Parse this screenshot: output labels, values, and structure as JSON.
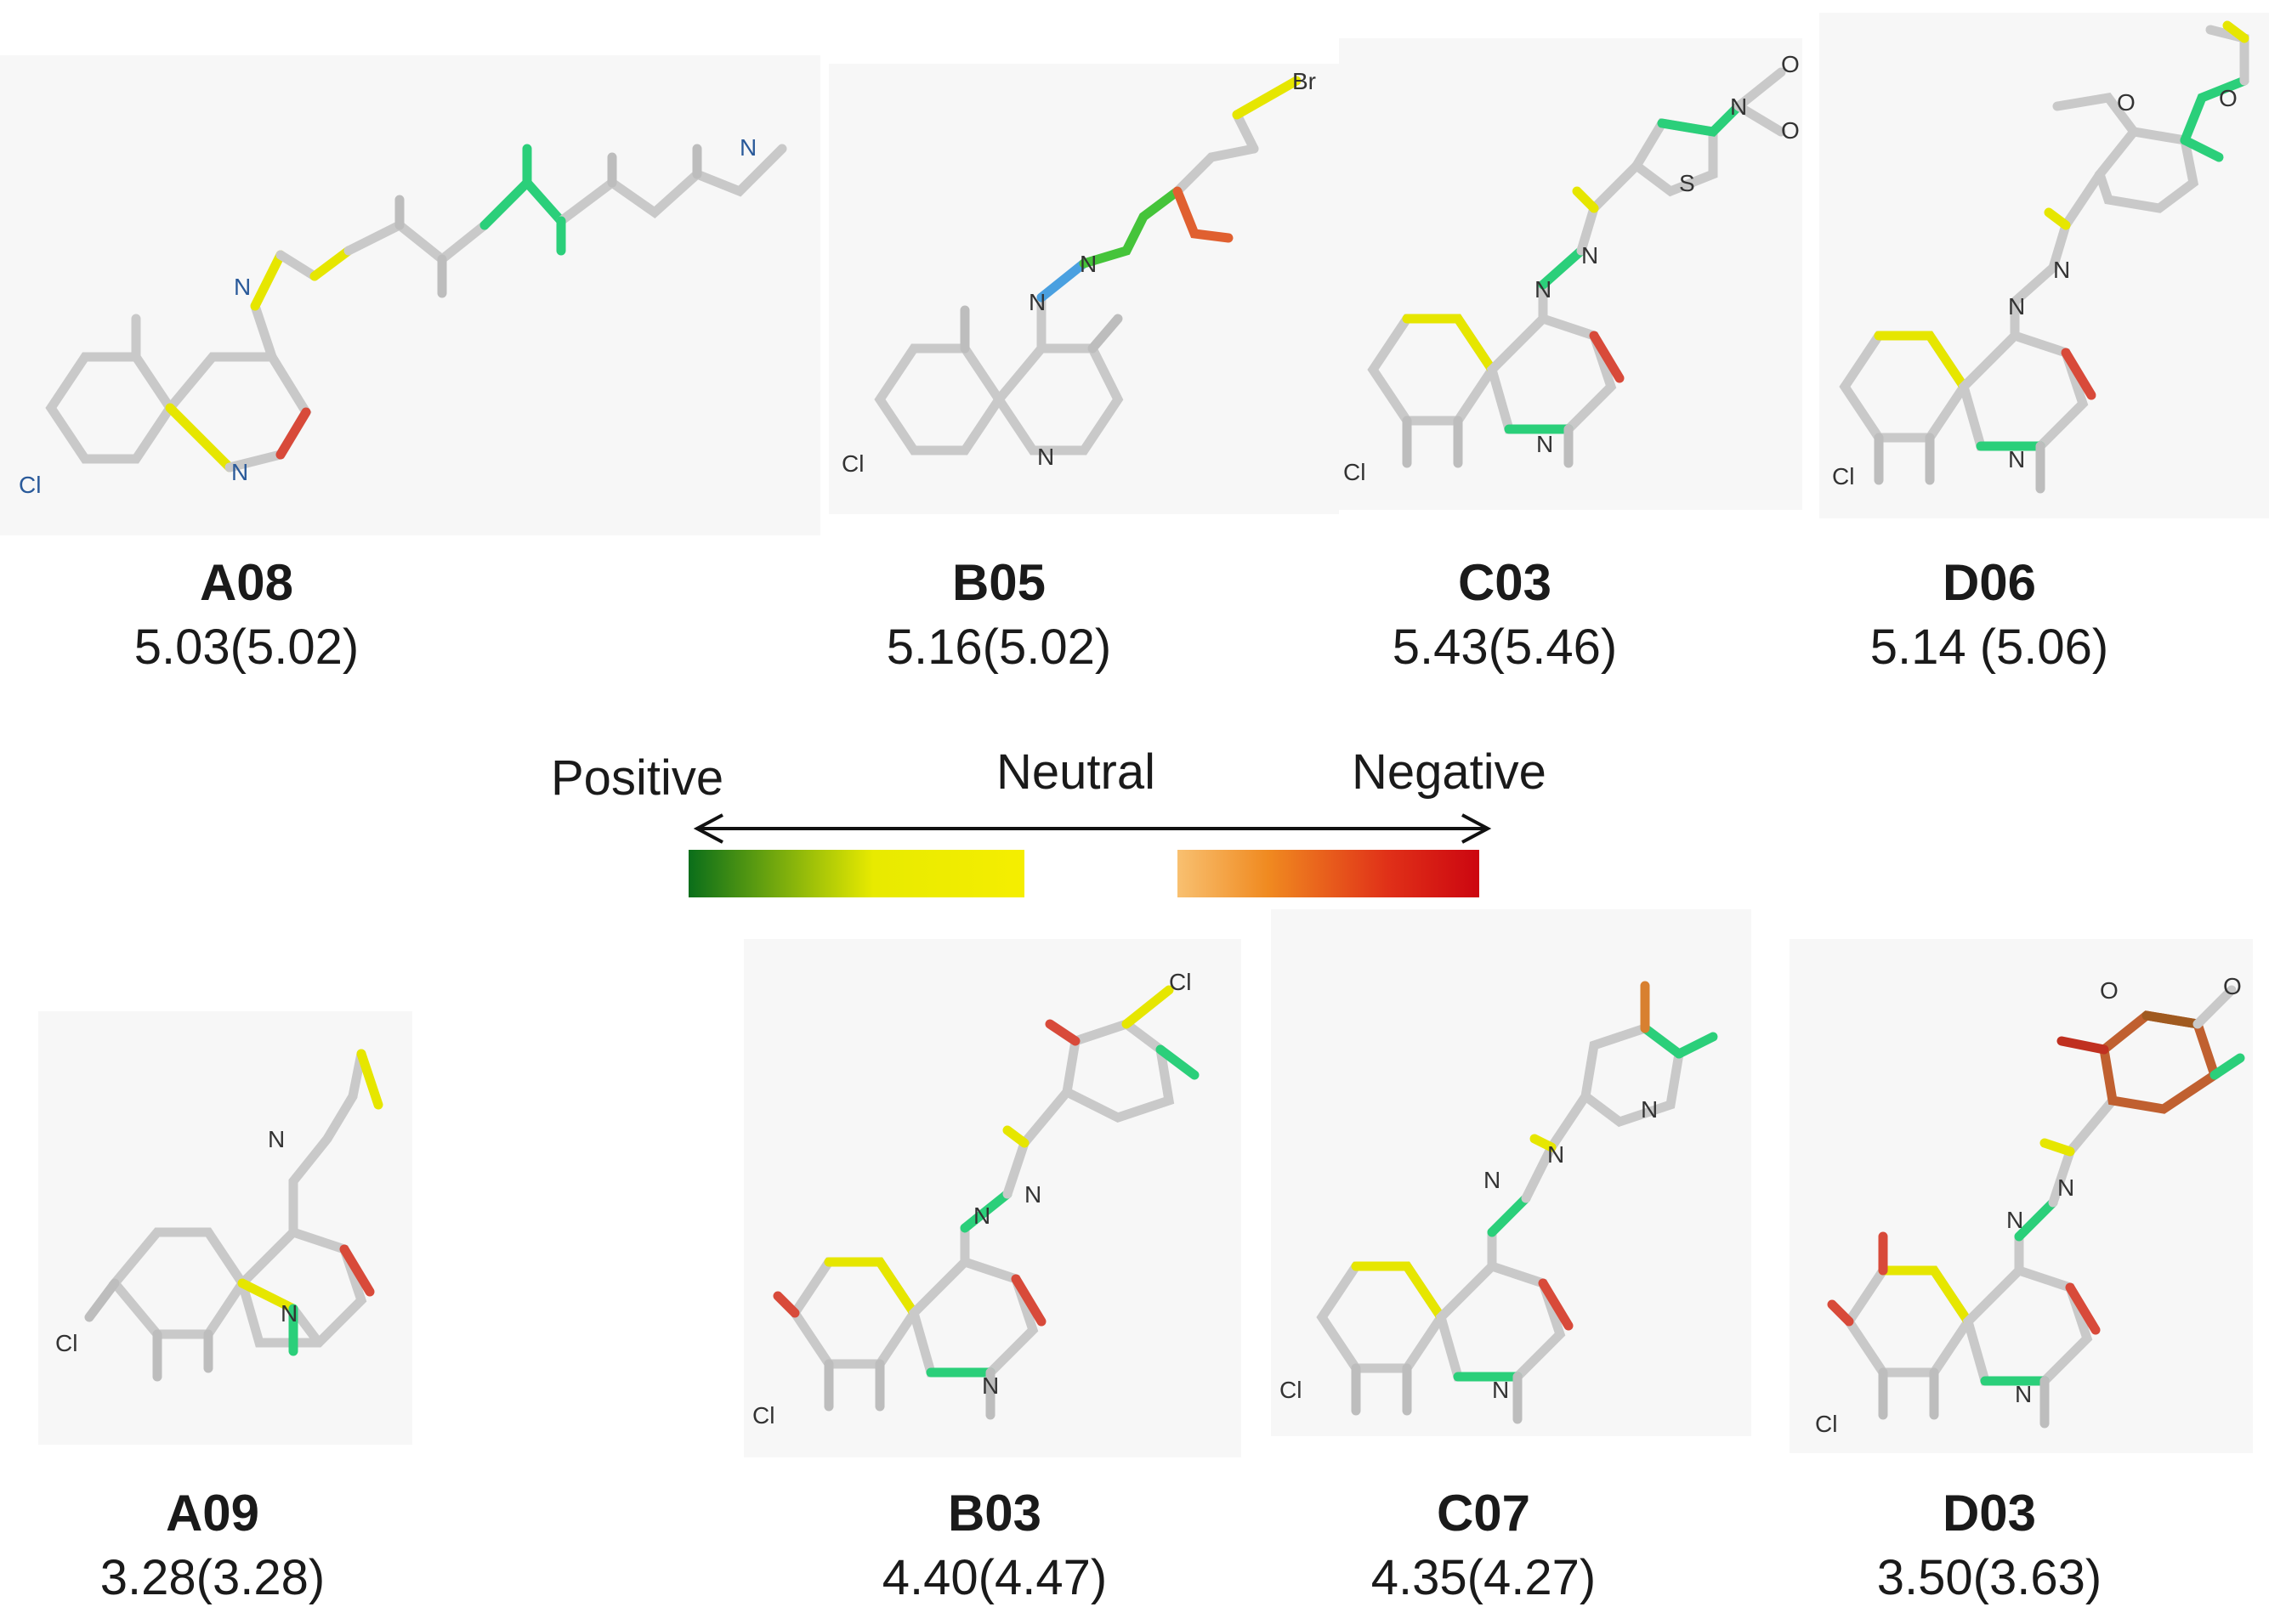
{
  "legend": {
    "positive": "Positive",
    "neutral": "Neutral",
    "negative": "Negative",
    "colors": {
      "green": "#0a6e1a",
      "yellow": "#f5ee00",
      "white": "#ffffff",
      "orange": "#f59a20",
      "red": "#d10a12"
    }
  },
  "compounds": [
    {
      "id": "A08",
      "value": "5.03(5.02)"
    },
    {
      "id": "B05",
      "value": "5.16(5.02)"
    },
    {
      "id": "C03",
      "value": "5.43(5.46)"
    },
    {
      "id": "D06",
      "value": "5.14 (5.06)"
    },
    {
      "id": "A09",
      "value": "3.28(3.28)"
    },
    {
      "id": "B03",
      "value": "4.40(4.47)"
    },
    {
      "id": "C07",
      "value": "4.35(4.27)"
    },
    {
      "id": "D03",
      "value": "3.50(3.63)"
    }
  ],
  "atom_labels": {
    "cl": "Cl",
    "n": "N",
    "o": "O",
    "s": "S",
    "br": "Br"
  }
}
